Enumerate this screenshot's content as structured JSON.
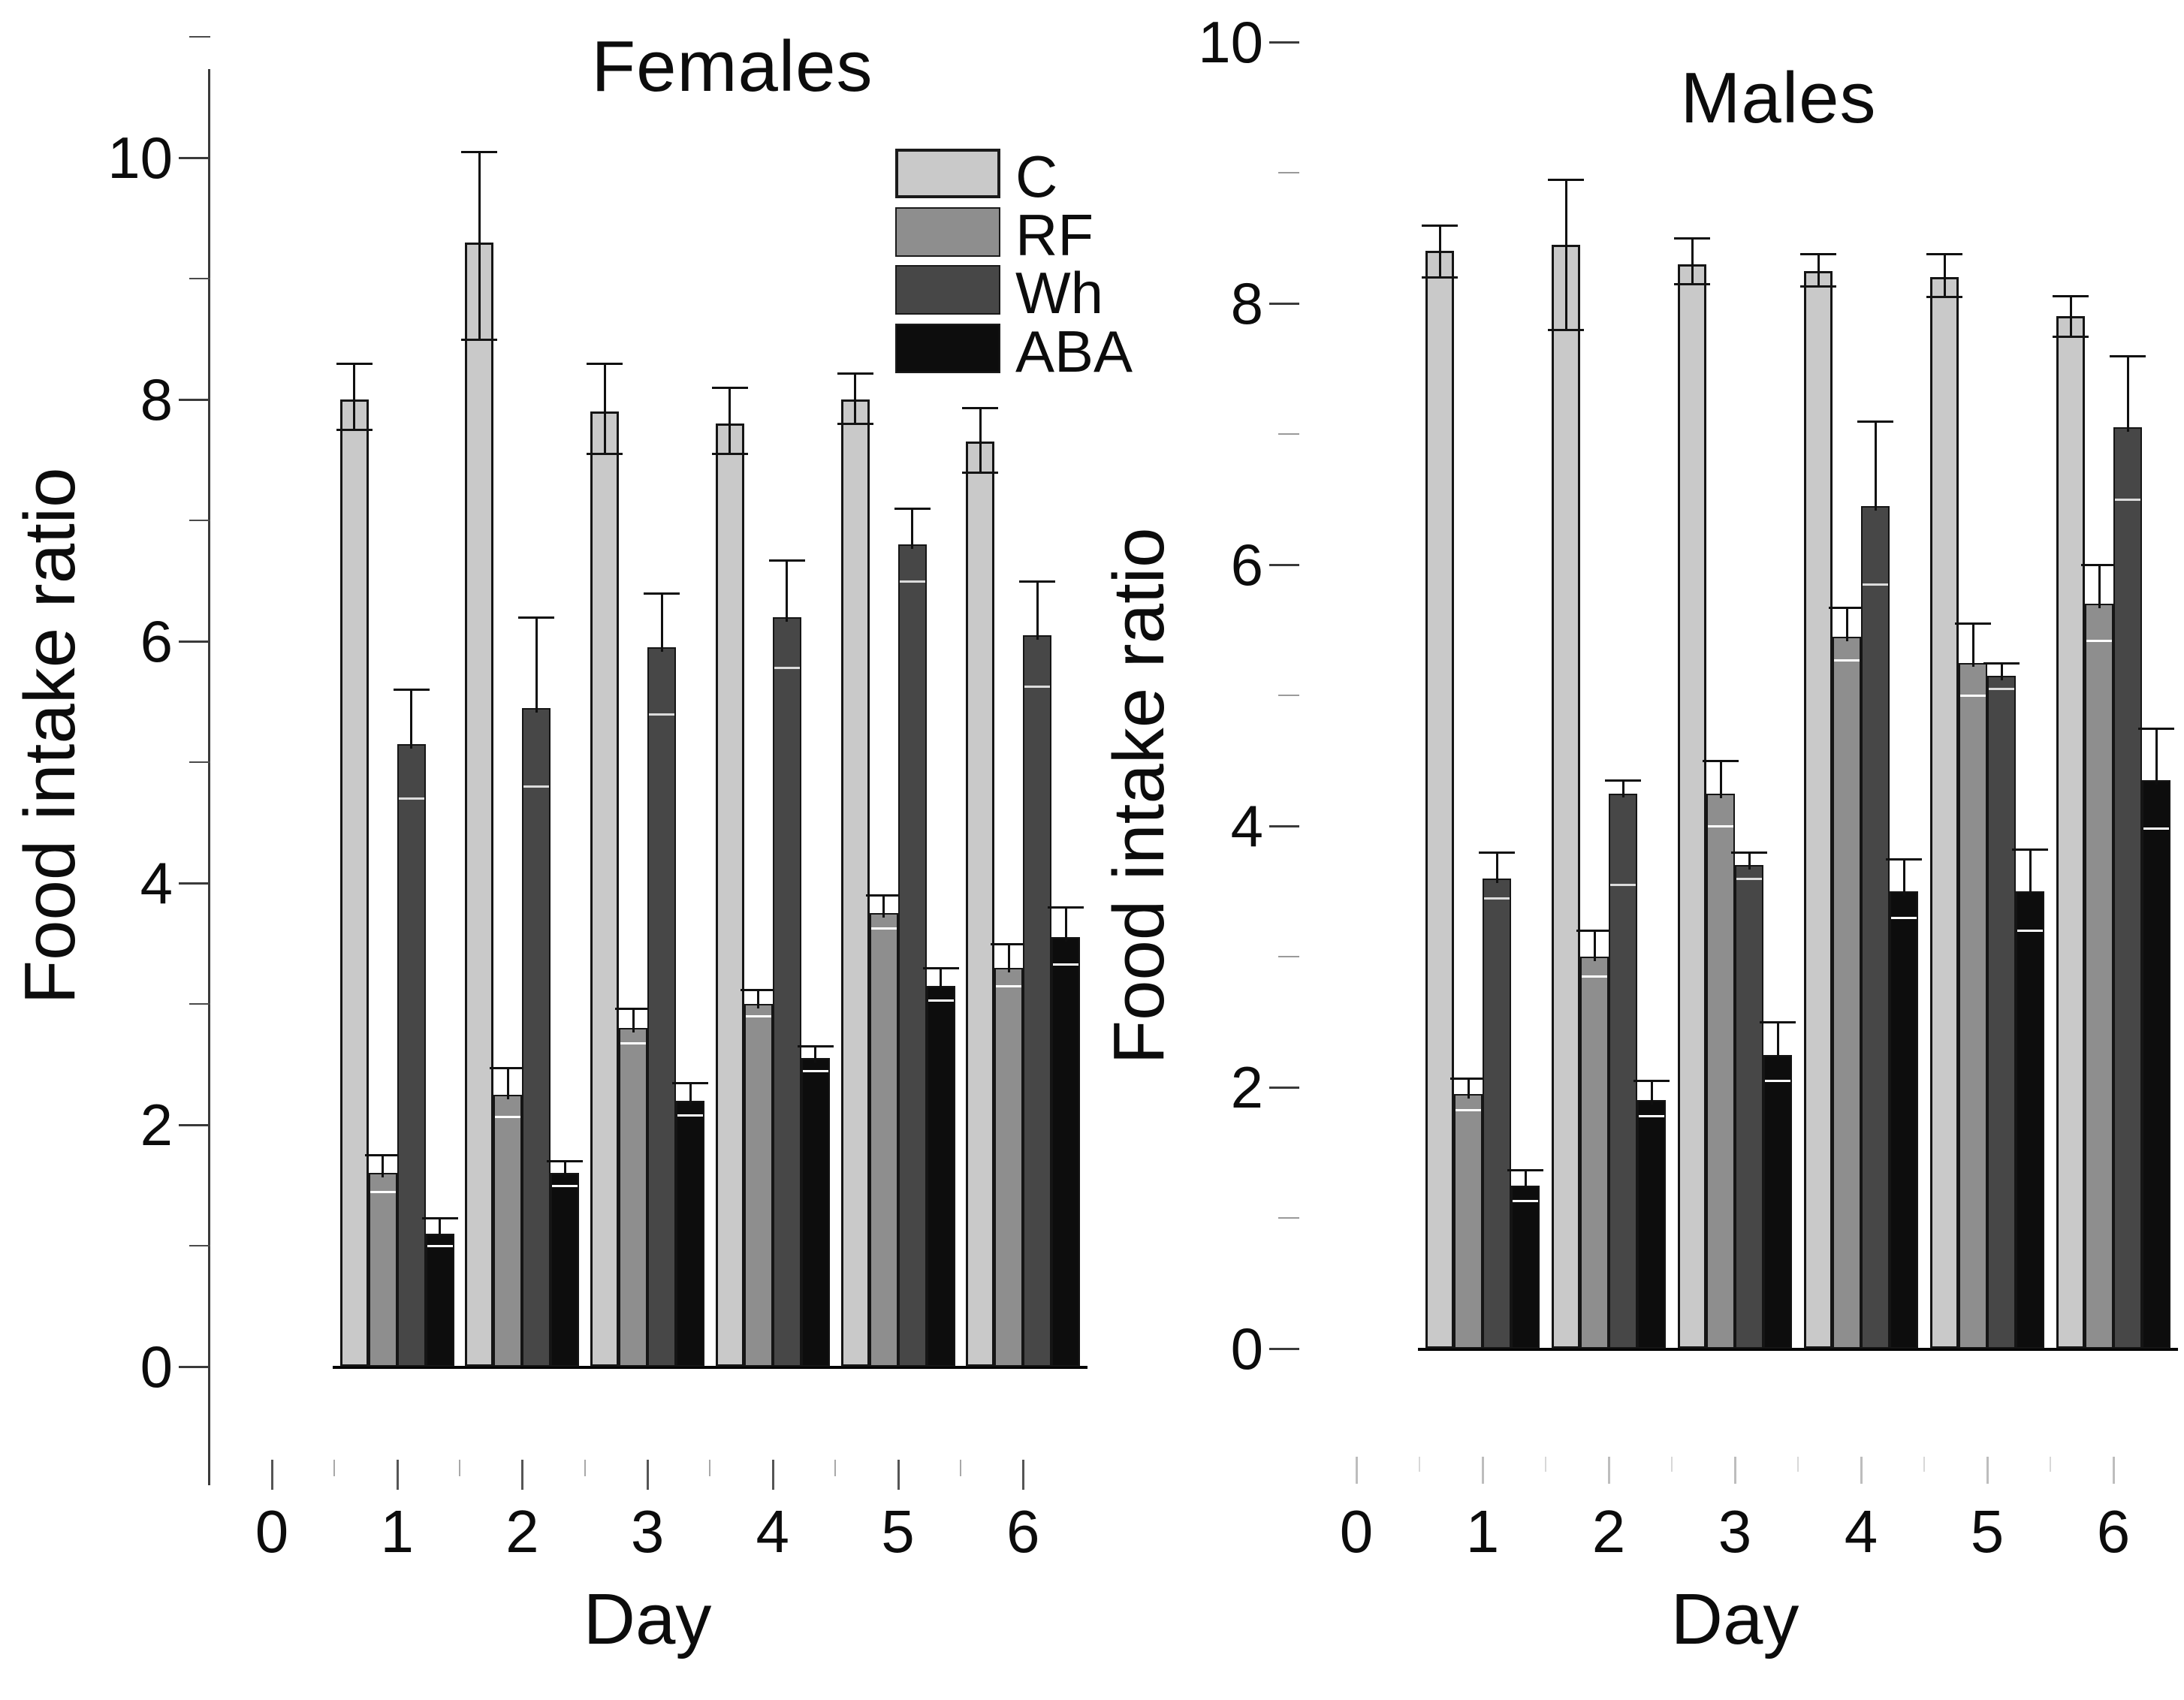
{
  "figure": {
    "background": "#ffffff",
    "description": "Two-panel grouped bar chart of food intake ratio by day for four groups (C, RF, Wh, ABA), females and males, with error bars"
  },
  "legend": {
    "position": "top-center, inside Females panel",
    "entries": [
      {
        "label": "C",
        "color": "#c9c9c9"
      },
      {
        "label": "RF",
        "color": "#8e8e8e"
      },
      {
        "label": "Wh",
        "color": "#474747"
      },
      {
        "label": "ABA",
        "color": "#0d0d0d"
      }
    ]
  },
  "chart_data": [
    {
      "type": "bar",
      "title": "Females",
      "ylabel": "Food intake ratio",
      "xlabel": "Day",
      "ylim": [
        0,
        10
      ],
      "yticks": [
        0,
        2,
        4,
        6,
        8,
        10
      ],
      "yticks_minor": [
        1,
        3,
        5,
        7,
        9,
        11
      ],
      "xticks": [
        "0",
        "1",
        "2",
        "3",
        "4",
        "5",
        "6"
      ],
      "categories": [
        1,
        2,
        3,
        4,
        5,
        6
      ],
      "grid": false,
      "error_bars": true,
      "series": [
        {
          "name": "C",
          "color": "#c9c9c9",
          "values": [
            8.0,
            9.3,
            7.9,
            7.8,
            8.0,
            7.65
          ],
          "err_up": [
            0.3,
            0.75,
            0.4,
            0.3,
            0.22,
            0.28
          ],
          "err_down": [
            0.25,
            0.8,
            0.35,
            0.25,
            0.2,
            0.25
          ]
        },
        {
          "name": "RF",
          "color": "#8e8e8e",
          "values": [
            1.6,
            2.25,
            2.8,
            3.0,
            3.75,
            3.3
          ],
          "err_up": [
            0.15,
            0.22,
            0.16,
            0.12,
            0.15,
            0.2
          ],
          "err_down": [
            0.15,
            0.18,
            0.12,
            0.1,
            0.12,
            0.15
          ]
        },
        {
          "name": "Wh",
          "color": "#474747",
          "values": [
            5.15,
            5.45,
            5.95,
            6.2,
            6.8,
            6.05
          ],
          "err_up": [
            0.45,
            0.75,
            0.45,
            0.47,
            0.3,
            0.45
          ],
          "err_down": [
            0.45,
            0.65,
            0.55,
            0.42,
            0.3,
            0.42
          ]
        },
        {
          "name": "ABA",
          "color": "#0d0d0d",
          "values": [
            1.1,
            1.6,
            2.2,
            2.55,
            3.15,
            3.55
          ],
          "err_up": [
            0.13,
            0.1,
            0.15,
            0.1,
            0.15,
            0.25
          ],
          "err_down": [
            0.1,
            0.1,
            0.12,
            0.1,
            0.12,
            0.22
          ]
        }
      ]
    },
    {
      "type": "bar",
      "title": "Males",
      "ylabel": "Food intake ratio",
      "xlabel": "Day",
      "ylim": [
        0,
        10
      ],
      "yticks": [
        0,
        2,
        4,
        6,
        8,
        10
      ],
      "yticks_minor": [
        1,
        3,
        5,
        7,
        9
      ],
      "xticks": [
        "0",
        "1",
        "2",
        "3",
        "4",
        "5",
        "6"
      ],
      "categories": [
        1,
        2,
        3,
        4,
        5,
        6
      ],
      "grid": false,
      "error_bars": true,
      "series": [
        {
          "name": "C",
          "color": "#c9c9c9",
          "values": [
            8.4,
            8.45,
            8.3,
            8.25,
            8.2,
            7.9
          ],
          "err_up": [
            0.2,
            0.5,
            0.2,
            0.13,
            0.18,
            0.16
          ],
          "err_down": [
            0.2,
            0.65,
            0.15,
            0.12,
            0.15,
            0.15
          ]
        },
        {
          "name": "RF",
          "color": "#8e8e8e",
          "values": [
            1.95,
            3.0,
            4.25,
            5.45,
            5.25,
            5.7
          ],
          "err_up": [
            0.12,
            0.2,
            0.25,
            0.22,
            0.3,
            0.3
          ],
          "err_down": [
            0.12,
            0.15,
            0.25,
            0.18,
            0.25,
            0.28
          ]
        },
        {
          "name": "Wh",
          "color": "#474747",
          "values": [
            3.6,
            4.25,
            3.7,
            6.45,
            5.15,
            7.05
          ],
          "err_up": [
            0.2,
            0.1,
            0.1,
            0.65,
            0.1,
            0.55
          ],
          "err_down": [
            0.15,
            0.7,
            0.1,
            0.6,
            0.1,
            0.55
          ]
        },
        {
          "name": "ABA",
          "color": "#0d0d0d",
          "values": [
            1.25,
            1.9,
            2.25,
            3.5,
            3.5,
            4.35
          ],
          "err_up": [
            0.12,
            0.15,
            0.25,
            0.25,
            0.32,
            0.4
          ],
          "err_down": [
            0.12,
            0.12,
            0.2,
            0.2,
            0.3,
            0.37
          ]
        }
      ]
    }
  ]
}
